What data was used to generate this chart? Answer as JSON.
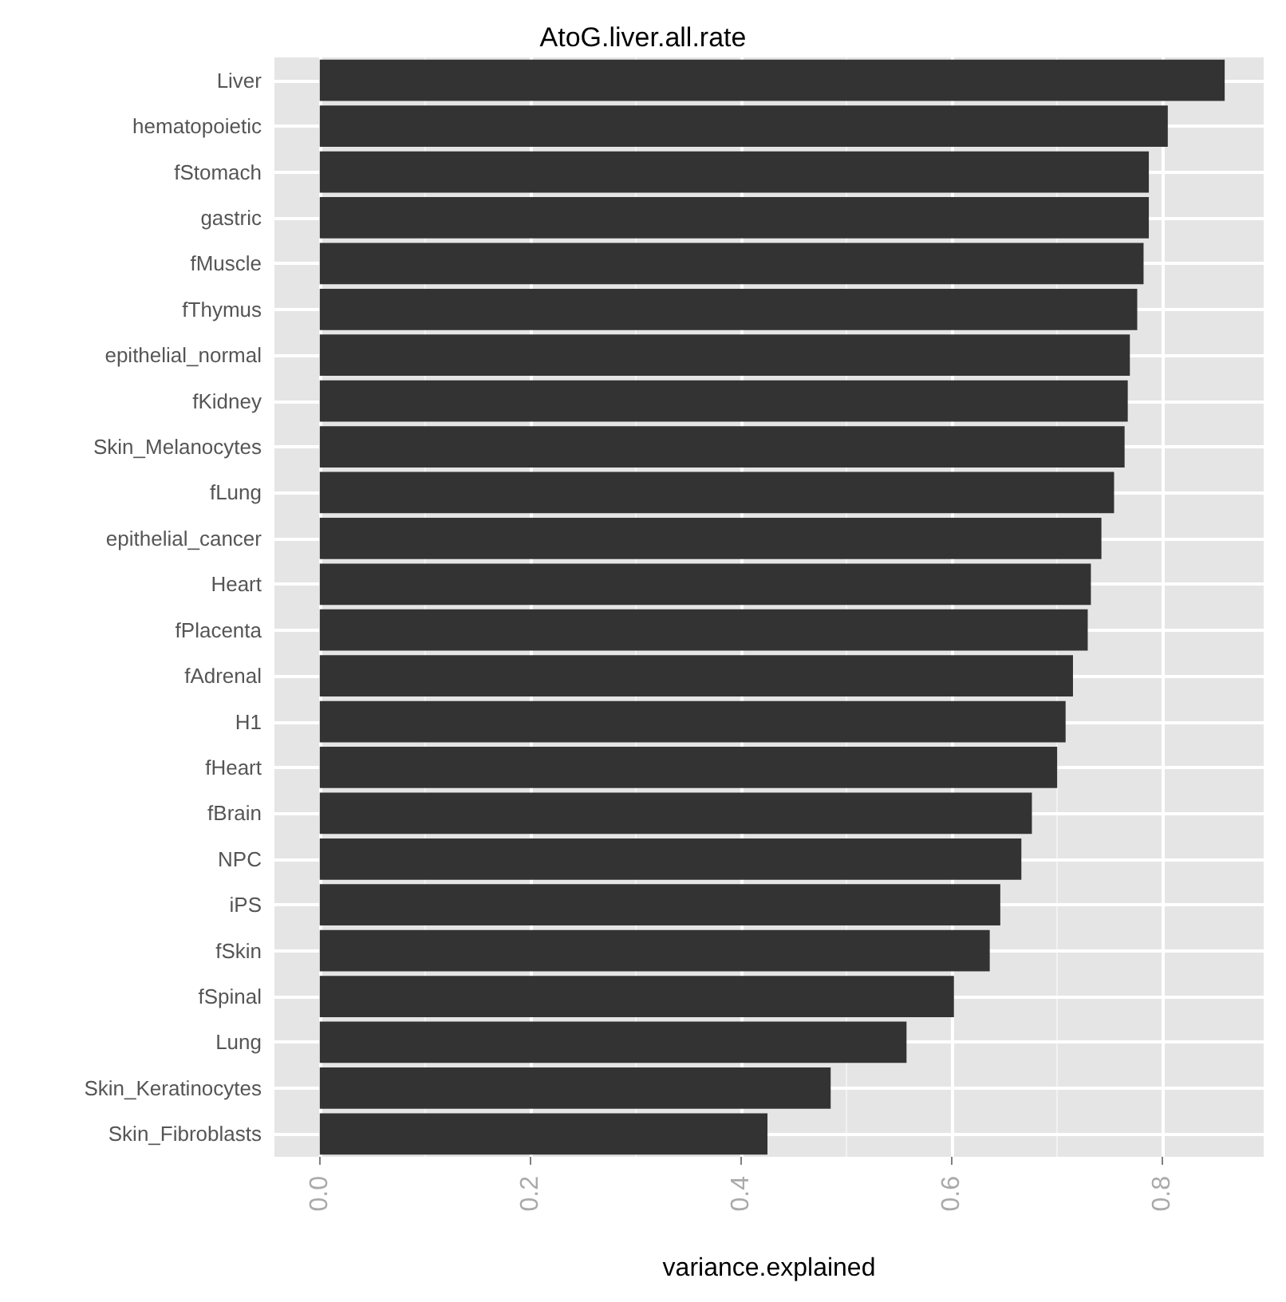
{
  "chart_data": {
    "type": "bar",
    "orientation": "horizontal",
    "title": "AtoG.liver.all.rate",
    "xlabel": "variance.explained",
    "categories": [
      "Liver",
      "hematopoietic",
      "fStomach",
      "gastric",
      "fMuscle",
      "fThymus",
      "epithelial_normal",
      "fKidney",
      "Skin_Melanocytes",
      "fLung",
      "epithelial_cancer",
      "Heart",
      "fPlacenta",
      "fAdrenal",
      "H1",
      "fHeart",
      "fBrain",
      "NPC",
      "iPS",
      "fSkin",
      "fSpinal",
      "Lung",
      "Skin_Keratinocytes",
      "Skin_Fibroblasts"
    ],
    "values": [
      0.859,
      0.805,
      0.787,
      0.787,
      0.782,
      0.776,
      0.769,
      0.767,
      0.764,
      0.754,
      0.742,
      0.732,
      0.729,
      0.715,
      0.708,
      0.7,
      0.676,
      0.666,
      0.646,
      0.636,
      0.602,
      0.557,
      0.485,
      0.425
    ],
    "color": "#333333",
    "xlim": [
      -0.043,
      0.896
    ],
    "xticks": [
      {
        "value": 0,
        "label": "0.0"
      },
      {
        "value": 0.2,
        "label": "0.2"
      },
      {
        "value": 0.4,
        "label": "0.4"
      },
      {
        "value": 0.6,
        "label": "0.6"
      },
      {
        "value": 0.8,
        "label": "0.8"
      }
    ],
    "grid": true
  }
}
